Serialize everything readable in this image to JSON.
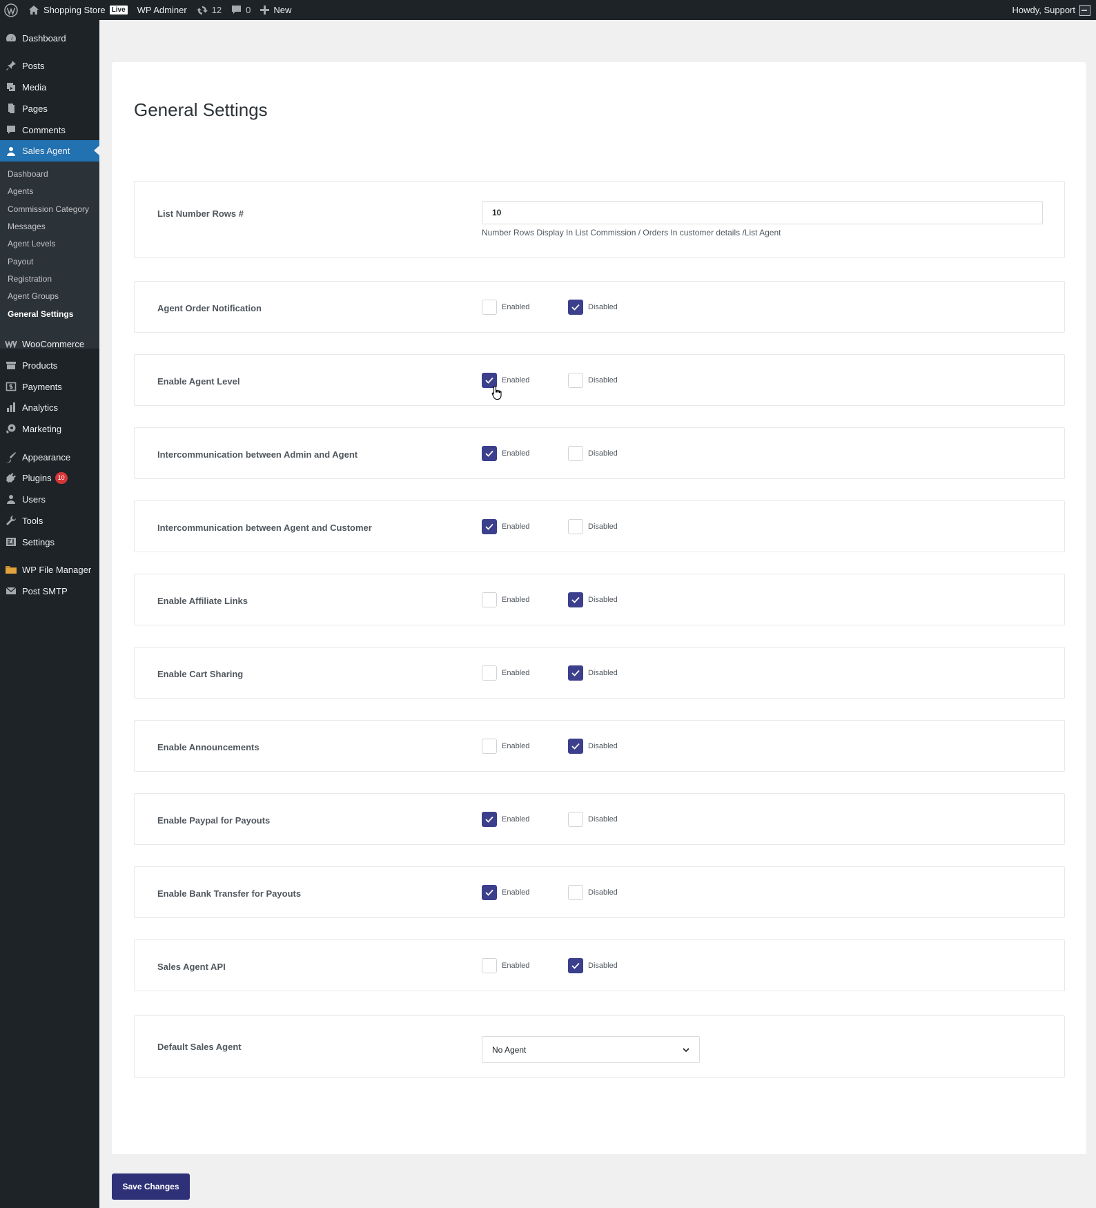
{
  "adminbar": {
    "site_name": "Shopping Store",
    "live_badge": "Live",
    "wp_adminer": "WP Adminer",
    "updates_count": "12",
    "comments_count": "0",
    "new_label": "New",
    "howdy": "Howdy, Support"
  },
  "sidebar": {
    "items": [
      {
        "label": "Dashboard",
        "icon": "dashboard-icon"
      },
      {
        "label": "Posts",
        "icon": "pin-icon"
      },
      {
        "label": "Media",
        "icon": "media-icon"
      },
      {
        "label": "Pages",
        "icon": "page-icon"
      },
      {
        "label": "Comments",
        "icon": "comment-icon"
      },
      {
        "label": "Sales Agent",
        "icon": "user-icon"
      },
      {
        "label": "WooCommerce",
        "icon": "woocommerce-icon"
      },
      {
        "label": "Products",
        "icon": "products-icon"
      },
      {
        "label": "Payments",
        "icon": "payments-icon"
      },
      {
        "label": "Analytics",
        "icon": "analytics-icon"
      },
      {
        "label": "Marketing",
        "icon": "megaphone-icon"
      },
      {
        "label": "Appearance",
        "icon": "brush-icon"
      },
      {
        "label": "Plugins",
        "icon": "plugin-icon"
      },
      {
        "label": "Users",
        "icon": "users-icon"
      },
      {
        "label": "Tools",
        "icon": "wrench-icon"
      },
      {
        "label": "Settings",
        "icon": "settings-icon"
      },
      {
        "label": "WP File Manager",
        "icon": "folder-icon"
      },
      {
        "label": "Post SMTP",
        "icon": "mail-icon"
      }
    ],
    "plugins_badge": "10",
    "submenu": [
      "Dashboard",
      "Agents",
      "Commission Category",
      "Messages",
      "Agent Levels",
      "Payout",
      "Registration",
      "Agent Groups",
      "General Settings"
    ]
  },
  "main": {
    "title": "General Settings",
    "list_rows": {
      "label": "List Number Rows #",
      "value": "10",
      "help": "Number Rows Display In List Commission / Orders In customer details /List Agent"
    },
    "enabled_label": "Enabled",
    "disabled_label": "Disabled",
    "toggles": [
      {
        "label": "Agent Order Notification",
        "enabled": false
      },
      {
        "label": "Enable Agent Level",
        "enabled": true
      },
      {
        "label": "Intercommunication between Admin and Agent",
        "enabled": true
      },
      {
        "label": "Intercommunication between Agent and Customer",
        "enabled": true
      },
      {
        "label": "Enable Affiliate Links",
        "enabled": false
      },
      {
        "label": "Enable Cart Sharing",
        "enabled": false
      },
      {
        "label": "Enable Announcements",
        "enabled": false
      },
      {
        "label": "Enable Paypal for Payouts",
        "enabled": true
      },
      {
        "label": "Enable Bank Transfer for Payouts",
        "enabled": true
      },
      {
        "label": "Sales Agent API",
        "enabled": false
      }
    ],
    "default_agent": {
      "label": "Default Sales Agent",
      "selected": "No Agent"
    },
    "save_label": "Save Changes"
  },
  "colors": {
    "accent": "#2271b1",
    "checkbox": "#3b3f8c",
    "button": "#2e3078"
  }
}
